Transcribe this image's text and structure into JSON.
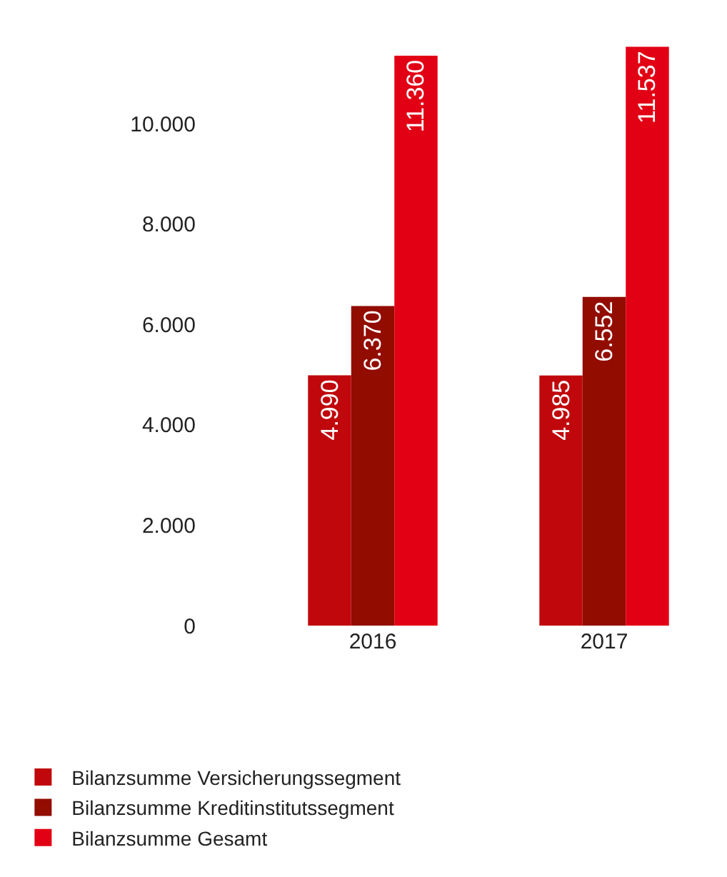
{
  "chart_data": {
    "type": "bar",
    "categories": [
      "2016",
      "2017"
    ],
    "series": [
      {
        "name": "Bilanzsumme Versicherungssegment",
        "color": "#c0080c",
        "values": [
          4990,
          4985
        ],
        "value_labels": [
          "4.990",
          "4.985"
        ]
      },
      {
        "name": "Bilanzsumme Kreditinstitutssegment",
        "color": "#920c00",
        "values": [
          6370,
          6552
        ],
        "value_labels": [
          "6.370",
          "6.552"
        ]
      },
      {
        "name": "Bilanzsumme Gesamt",
        "color": "#e20014",
        "values": [
          11360,
          11537
        ],
        "value_labels": [
          "11.360",
          "11.537"
        ]
      }
    ],
    "ylim": [
      0,
      11700
    ],
    "yticks": [
      0,
      {
        "value": 2000,
        "label": "2.000"
      },
      {
        "value": 4000,
        "label": "4.000"
      },
      {
        "value": 6000,
        "label": "6.000"
      },
      {
        "value": 8000,
        "label": "8.000"
      },
      {
        "value": 10000,
        "label": "10.000"
      }
    ],
    "grid": false,
    "legend": "bottom"
  }
}
